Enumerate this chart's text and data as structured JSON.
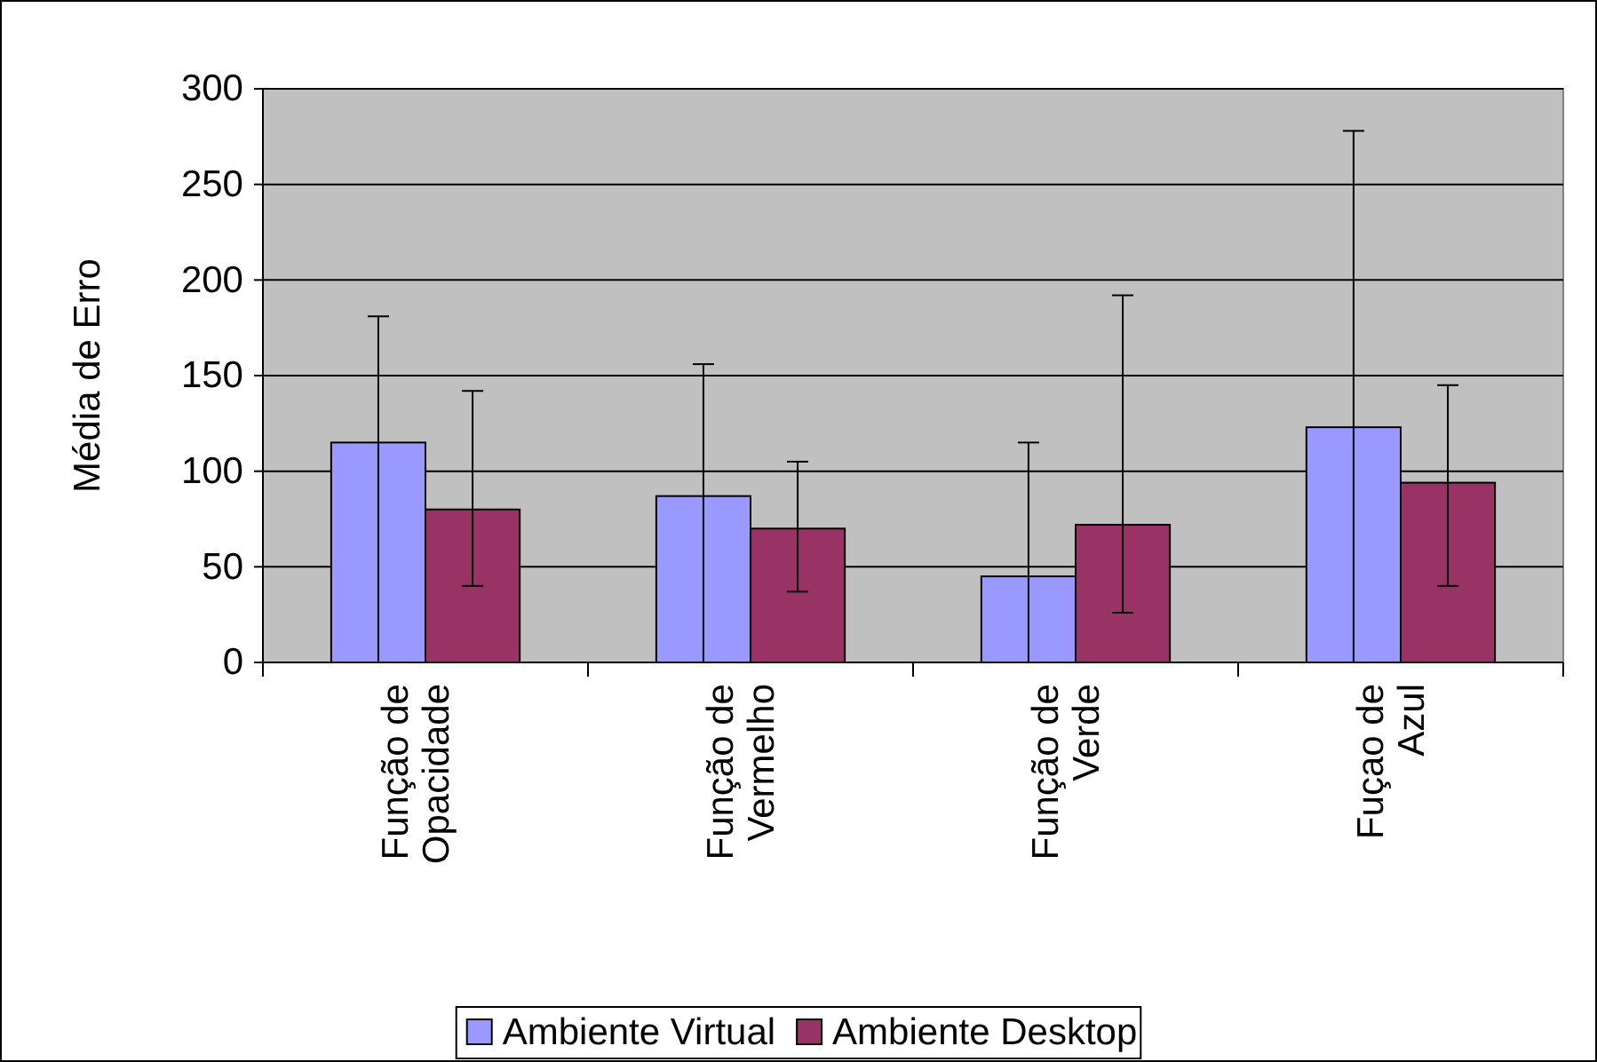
{
  "chart_data": {
    "type": "bar",
    "ylabel": "Média de Erro",
    "categories": [
      "Função de Opacidade",
      "Função de Vermelho",
      "Função de Verde",
      "Fuçao de Azul"
    ],
    "series": [
      {
        "name": "Ambiente Virtual",
        "color": "#9999ff",
        "values": [
          115,
          87,
          45,
          123
        ],
        "errors": [
          [
            0,
            181
          ],
          [
            0,
            156
          ],
          [
            0,
            115
          ],
          [
            0,
            278
          ]
        ]
      },
      {
        "name": "Ambiente Desktop",
        "color": "#993366",
        "values": [
          80,
          70,
          72,
          94
        ],
        "errors": [
          [
            40,
            142
          ],
          [
            37,
            105
          ],
          [
            26,
            192
          ],
          [
            40,
            145
          ]
        ]
      }
    ],
    "ylim": [
      0,
      300
    ],
    "yticks": [
      0,
      50,
      100,
      150,
      200,
      250,
      300
    ],
    "grid": "y",
    "legend": "bottom"
  }
}
